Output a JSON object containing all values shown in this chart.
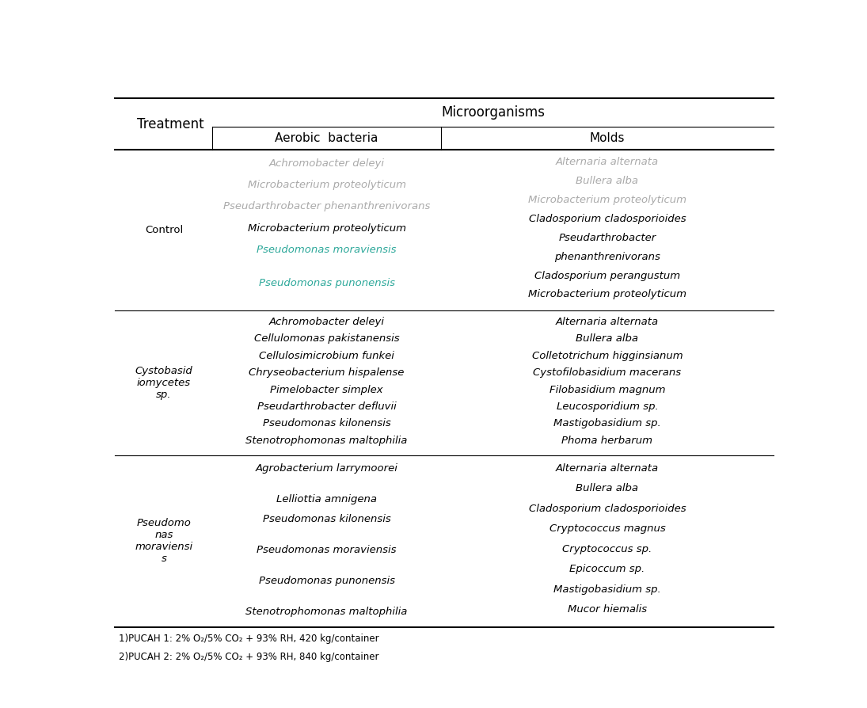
{
  "col1_header": "Treatment",
  "col2_header": "Microorganisms",
  "col2a_header": "Aerobic  bacteria",
  "col2b_header": "Molds",
  "bg_color": "#ffffff",
  "text_color": "#000000",
  "header_color": "#000000",
  "light_text_color": "#aaaaaa",
  "teal_color": "#2da89a",
  "control_aerobic": [
    {
      "text": "Achromobacter deleyi",
      "color": "#aaaaaa"
    },
    {
      "text": "Microbacterium proteolyticum",
      "color": "#aaaaaa"
    },
    {
      "text": "Pseudarthrobacter phenanthrenivorans",
      "color": "#aaaaaa"
    },
    {
      "text": "Microbacterium proteolyticum",
      "color": "#000000"
    },
    {
      "text": "Pseudomonas moraviensis",
      "color": "#2da89a"
    },
    {
      "text": "",
      "color": "#000000"
    },
    {
      "text": "Pseudomonas punonensis",
      "color": "#2da89a"
    }
  ],
  "control_molds": [
    {
      "text": "Alternaria alternata",
      "color": "#aaaaaa"
    },
    {
      "text": "Bullera alba",
      "color": "#aaaaaa"
    },
    {
      "text": "Microbacterium proteolyticum",
      "color": "#aaaaaa"
    },
    {
      "text": "Cladosporium cladosporioides",
      "color": "#000000"
    },
    {
      "text": "Pseudarthrobacter",
      "color": "#000000"
    },
    {
      "text": "phenanthrenivorans",
      "color": "#000000"
    },
    {
      "text": "Cladosporium perangustum",
      "color": "#000000"
    },
    {
      "text": "Microbacterium proteolyticum",
      "color": "#000000"
    }
  ],
  "cysto_aerobic": [
    "Achromobacter deleyi",
    "Cellulomonas pakistanensis",
    "Cellulosimicrobium funkei",
    "Chryseobacterium hispalense",
    "Pimelobacter simplex",
    "Pseudarthrobacter defluvii",
    "Pseudomonas kilonensis",
    "Stenotrophomonas maltophilia"
  ],
  "cysto_molds": [
    "Alternaria alternata",
    "Bullera alba",
    "Colletotrichum higginsianum",
    "Cystofilobasidium macerans",
    "Filobasidium magnum",
    "Leucosporidium sp.",
    "Mastigobasidium sp.",
    "Phoma herbarum"
  ],
  "pseudo_aerobic": [
    {
      "text": "Agrobacterium larrymoorei",
      "gap_after": true
    },
    {
      "text": "Lelliottia amnigena",
      "gap_after": false
    },
    {
      "text": "Pseudomonas kilonensis",
      "gap_after": true
    },
    {
      "text": "Pseudomonas moraviensis",
      "gap_after": true
    },
    {
      "text": "Pseudomonas punonensis",
      "gap_after": true
    },
    {
      "text": "Stenotrophomonas maltophilia",
      "gap_after": false
    }
  ],
  "pseudo_molds": [
    "Alternaria alternata",
    "Bullera alba",
    "Cladosporium cladosporioides",
    "Cryptococcus magnus",
    "Cryptococcus sp.",
    "Epicoccum sp.",
    "Mastigobasidium sp.",
    "Mucor hiemalis"
  ],
  "footnotes": [
    "1)PUCAH 1: 2% O₂/5% CO₂ + 93% RH, 420 kg/container",
    "2)PUCAH 2: 2% O₂/5% CO₂ + 93% RH, 840 kg/container"
  ]
}
